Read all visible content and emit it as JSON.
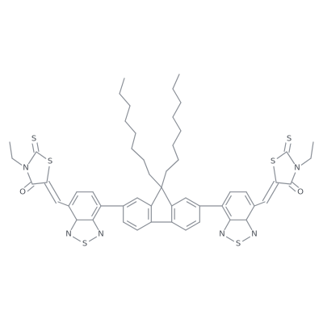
{
  "left_rhodanine": {
    "thione_s": "S",
    "ring_s": "S",
    "n": "N",
    "o": "O"
  },
  "left_benzothiadiazole": {
    "n1": "N",
    "s": "S",
    "n2": "N"
  },
  "right_benzothiadiazole": {
    "n1": "N",
    "s": "S",
    "n2": "N"
  },
  "right_rhodanine": {
    "thione_s": "S",
    "ring_s": "S",
    "n": "N",
    "o": "O"
  }
}
